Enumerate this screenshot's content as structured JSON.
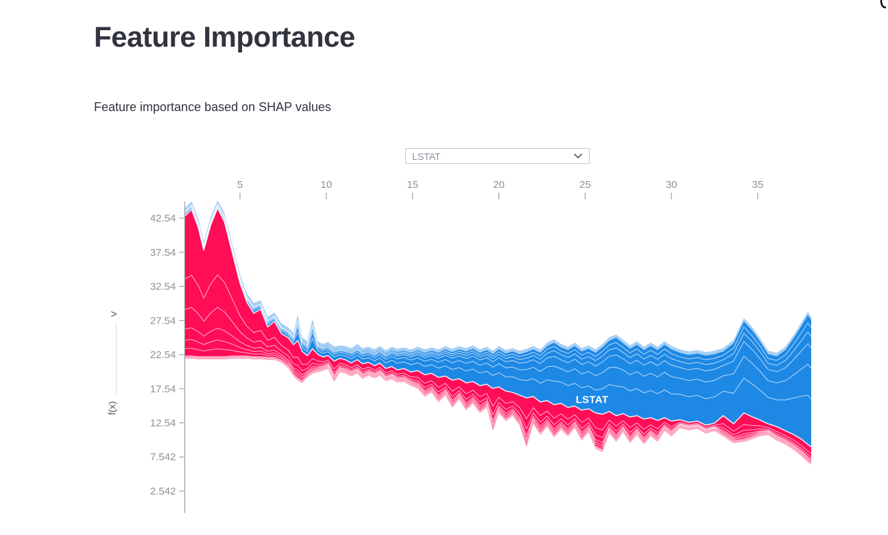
{
  "header": {
    "title": "Feature Importance",
    "subtitle": "Feature importance based on SHAP values"
  },
  "controls": {
    "feature_dropdown": {
      "value": "LSTAT",
      "icon": "chevron-down-icon"
    },
    "output_axis": {
      "expander_glyph": ">",
      "label": "f(x)"
    }
  },
  "chart_data": {
    "type": "area",
    "variant": "shap-force-plot",
    "title": "",
    "xlabel": "",
    "ylabel": "f(x)",
    "selected_feature": "LSTAT",
    "area_label": "LSTAT",
    "legend": "none",
    "x_axis_position": "top",
    "x_ticks": [
      5,
      10,
      15,
      20,
      25,
      30,
      35
    ],
    "y_ticks": [
      "42.54",
      "37.54",
      "32.54",
      "27.54",
      "22.54",
      "17.54",
      "12.54",
      "7.542",
      "2.542"
    ],
    "y_tick_values": [
      42.54,
      37.54,
      32.54,
      27.54,
      22.54,
      17.54,
      12.54,
      7.542,
      2.542
    ],
    "x_range": [
      1.8,
      38.1
    ],
    "y_range": [
      0.0,
      45.4
    ],
    "colors": {
      "positive": "#ff0d57",
      "negative": "#1e88e5",
      "positive_light": "rgba(255,13,87,0.35)",
      "negative_light": "rgba(30,136,229,0.4)",
      "divider": "#ffffff",
      "axis": "#8f8f8f",
      "tick_label": "#909090"
    },
    "divider_fractions": {
      "red": [
        0.05,
        0.11,
        0.19,
        0.33,
        0.55
      ],
      "blue": [
        0.06,
        0.13,
        0.22,
        0.38,
        0.62
      ]
    },
    "label_pos": {
      "x": 25.4,
      "y": 15.9
    },
    "points_format": [
      "x",
      "bottom",
      "fx_boundary",
      "top"
    ],
    "points": [
      [
        1.8,
        22.4,
        42.8,
        43.5
      ],
      [
        2.2,
        22.4,
        43.8,
        44.5
      ],
      [
        2.6,
        22.3,
        41.0,
        41.8
      ],
      [
        2.9,
        22.3,
        37.8,
        38.6
      ],
      [
        3.3,
        22.3,
        41.5,
        42.2
      ],
      [
        3.7,
        22.3,
        44.0,
        44.6
      ],
      [
        4.1,
        22.3,
        42.0,
        42.8
      ],
      [
        4.5,
        22.4,
        38.0,
        38.8
      ],
      [
        5.0,
        22.4,
        33.0,
        33.8
      ],
      [
        5.4,
        22.4,
        30.2,
        31.0
      ],
      [
        5.8,
        22.3,
        28.6,
        29.6
      ],
      [
        6.2,
        22.3,
        29.2,
        30.0
      ],
      [
        6.6,
        22.2,
        26.6,
        27.6
      ],
      [
        7.0,
        22.2,
        27.4,
        28.2
      ],
      [
        7.4,
        21.8,
        25.6,
        26.6
      ],
      [
        7.8,
        21.0,
        25.0,
        26.0
      ],
      [
        8.1,
        19.8,
        24.0,
        25.2
      ],
      [
        8.35,
        19.2,
        24.6,
        27.9
      ],
      [
        8.6,
        18.8,
        23.0,
        24.6
      ],
      [
        8.9,
        19.6,
        22.4,
        24.0
      ],
      [
        9.2,
        20.2,
        23.4,
        27.3
      ],
      [
        9.5,
        20.4,
        22.6,
        24.0
      ],
      [
        9.8,
        20.6,
        22.2,
        23.6
      ],
      [
        10.1,
        20.9,
        22.4,
        23.9
      ],
      [
        10.45,
        19.0,
        21.6,
        23.2
      ],
      [
        10.8,
        20.4,
        22.0,
        23.4
      ],
      [
        11.1,
        20.2,
        21.8,
        23.3
      ],
      [
        11.45,
        19.8,
        21.3,
        23.0
      ],
      [
        11.8,
        20.2,
        21.8,
        23.6
      ],
      [
        12.1,
        19.4,
        21.2,
        23.0
      ],
      [
        12.45,
        19.9,
        21.4,
        23.2
      ],
      [
        12.8,
        19.5,
        20.9,
        22.8
      ],
      [
        13.1,
        19.9,
        21.3,
        23.3
      ],
      [
        13.45,
        19.1,
        20.5,
        22.7
      ],
      [
        13.8,
        19.4,
        20.8,
        23.2
      ],
      [
        14.1,
        18.9,
        20.3,
        22.9
      ],
      [
        14.5,
        19.0,
        20.5,
        23.1
      ],
      [
        14.9,
        18.4,
        20.0,
        22.8
      ],
      [
        15.3,
        18.0,
        20.2,
        23.2
      ],
      [
        15.7,
        16.8,
        19.6,
        22.8
      ],
      [
        16.1,
        17.4,
        19.8,
        23.1
      ],
      [
        16.5,
        16.0,
        19.2,
        22.8
      ],
      [
        16.9,
        17.0,
        19.4,
        23.3
      ],
      [
        17.3,
        15.2,
        18.8,
        22.9
      ],
      [
        17.7,
        16.4,
        19.0,
        23.3
      ],
      [
        18.1,
        14.8,
        18.4,
        23.0
      ],
      [
        18.5,
        15.8,
        18.6,
        23.4
      ],
      [
        18.9,
        14.4,
        18.0,
        22.8
      ],
      [
        19.3,
        15.2,
        18.2,
        23.2
      ],
      [
        19.65,
        11.8,
        17.6,
        22.6
      ],
      [
        20.0,
        14.4,
        17.8,
        23.3
      ],
      [
        20.4,
        13.2,
        17.2,
        22.7
      ],
      [
        20.8,
        14.0,
        17.0,
        23.0
      ],
      [
        21.2,
        12.6,
        16.6,
        22.6
      ],
      [
        21.6,
        9.4,
        16.2,
        22.9
      ],
      [
        22.0,
        12.8,
        16.4,
        23.3
      ],
      [
        22.4,
        11.2,
        15.6,
        22.8
      ],
      [
        22.8,
        12.4,
        15.8,
        23.8
      ],
      [
        23.2,
        10.8,
        15.2,
        24.3
      ],
      [
        23.6,
        12.0,
        15.4,
        23.6
      ],
      [
        24.0,
        11.0,
        14.8,
        23.2
      ],
      [
        24.4,
        12.2,
        15.0,
        23.8
      ],
      [
        24.8,
        10.4,
        14.4,
        23.0
      ],
      [
        25.2,
        11.6,
        14.6,
        23.4
      ],
      [
        25.6,
        9.2,
        14.0,
        22.8
      ],
      [
        26.0,
        8.7,
        13.8,
        23.6
      ],
      [
        26.4,
        11.4,
        14.2,
        24.6
      ],
      [
        26.8,
        10.2,
        13.6,
        25.0
      ],
      [
        27.2,
        11.6,
        13.9,
        24.2
      ],
      [
        27.6,
        10.0,
        13.4,
        23.4
      ],
      [
        28.0,
        11.2,
        13.6,
        24.0
      ],
      [
        28.4,
        9.8,
        13.1,
        23.2
      ],
      [
        28.8,
        11.0,
        13.3,
        23.8
      ],
      [
        29.2,
        10.2,
        12.9,
        23.2
      ],
      [
        29.6,
        11.8,
        13.3,
        24.0
      ],
      [
        30.0,
        11.0,
        12.8,
        23.3
      ],
      [
        30.5,
        12.2,
        13.0,
        22.8
      ],
      [
        31.0,
        11.9,
        12.6,
        22.5
      ],
      [
        31.5,
        12.1,
        12.8,
        22.7
      ],
      [
        32.0,
        11.4,
        12.2,
        22.4
      ],
      [
        32.5,
        11.8,
        12.5,
        22.6
      ],
      [
        33.0,
        11.0,
        13.6,
        23.0
      ],
      [
        33.6,
        10.0,
        12.4,
        24.2
      ],
      [
        34.2,
        10.2,
        14.0,
        27.4
      ],
      [
        34.7,
        10.6,
        13.4,
        26.0
      ],
      [
        35.1,
        11.0,
        13.0,
        24.6
      ],
      [
        35.6,
        11.2,
        12.4,
        22.6
      ],
      [
        36.1,
        10.4,
        12.0,
        22.3
      ],
      [
        36.6,
        9.8,
        11.4,
        23.2
      ],
      [
        37.1,
        9.0,
        10.8,
        25.0
      ],
      [
        37.5,
        8.2,
        10.2,
        26.6
      ],
      [
        37.9,
        7.2,
        9.4,
        28.3
      ],
      [
        38.1,
        6.9,
        9.0,
        27.6
      ]
    ]
  }
}
